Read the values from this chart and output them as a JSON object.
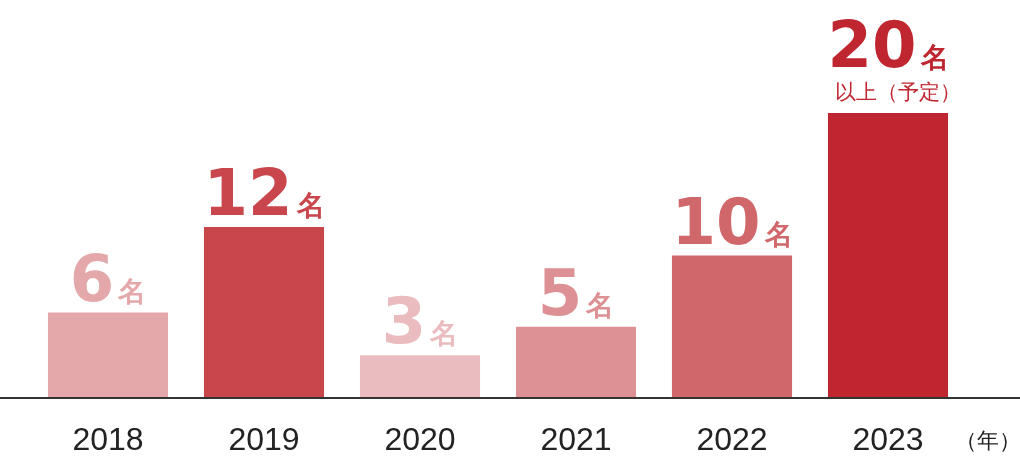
{
  "chart_data": {
    "type": "bar",
    "categories": [
      "2018",
      "2019",
      "2020",
      "2021",
      "2022",
      "2023"
    ],
    "values": [
      6,
      12,
      3,
      5,
      10,
      20
    ],
    "colors": [
      "#e4a8ab",
      "#c8464c",
      "#ebbcbf",
      "#dd9194",
      "#d0676b",
      "#bf2630"
    ],
    "value_labels": [
      "6名",
      "12名",
      "3名",
      "5名",
      "10名",
      "20名"
    ],
    "annotations": [
      {
        "text": "以上（予定）",
        "x": "2023",
        "y": 20
      }
    ],
    "xlabel": "（年）"
  }
}
